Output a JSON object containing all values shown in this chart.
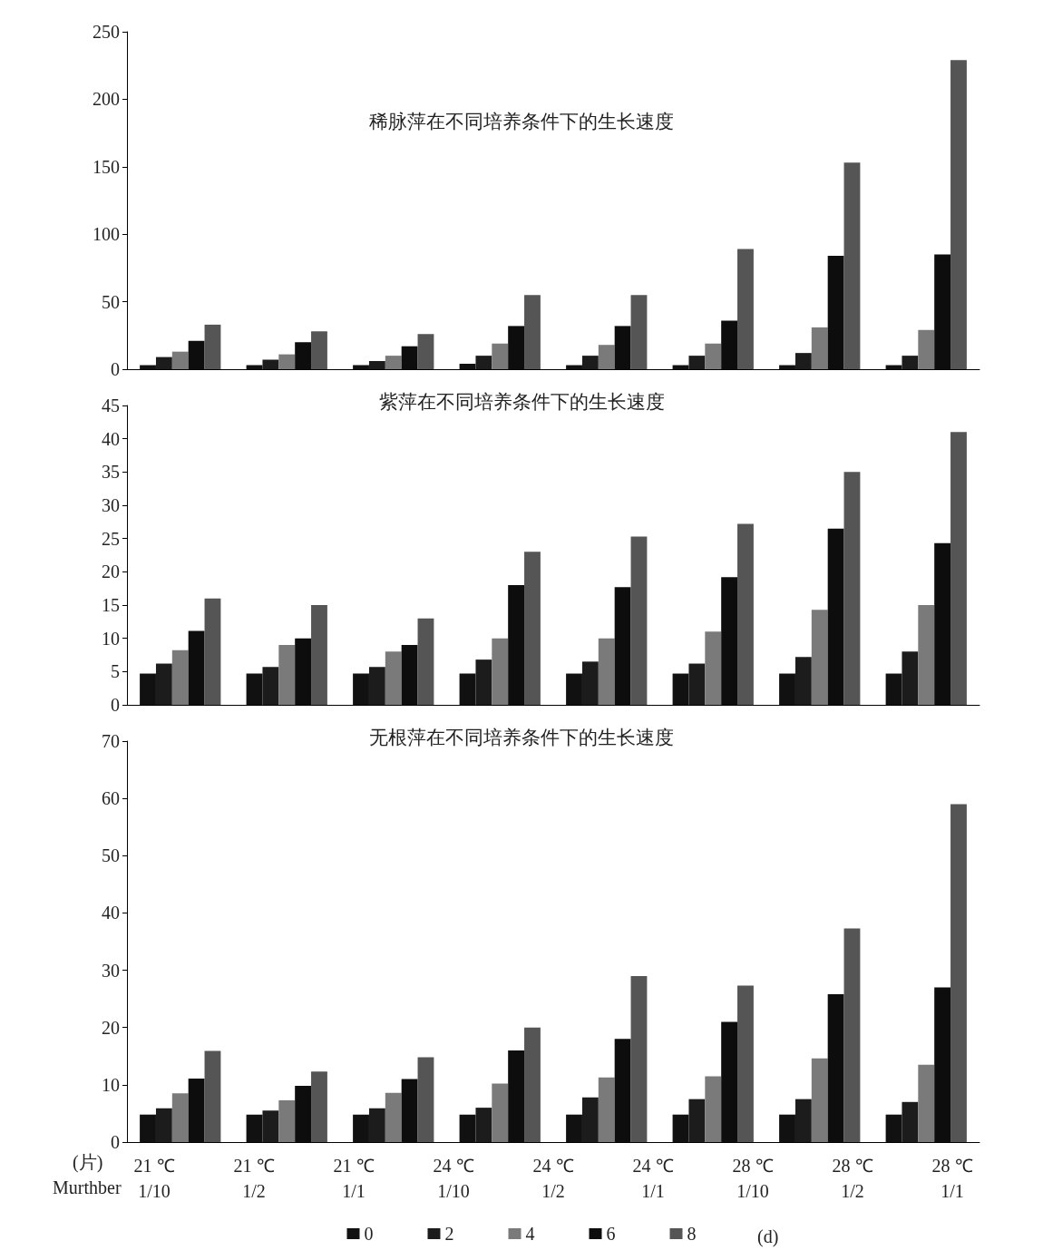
{
  "chart_data": [
    {
      "type": "bar",
      "title": "稀脉萍在不同培养条件下的生长速度",
      "categories": [
        null,
        null,
        null,
        null,
        null,
        null,
        null,
        null
      ],
      "ylim": [
        0,
        250
      ],
      "yticks": [
        0,
        50,
        100,
        150,
        200,
        250
      ],
      "grid": false,
      "legend": false,
      "series": [
        {
          "color": "#111111",
          "values": [
            3,
            3,
            3,
            4,
            3,
            3,
            3,
            3
          ]
        },
        {
          "color": "#1c1c1c",
          "values": [
            9,
            7,
            6,
            10,
            10,
            10,
            12,
            10
          ]
        },
        {
          "color": "#7a7a7a",
          "values": [
            13,
            11,
            10,
            19,
            18,
            19,
            31,
            29
          ]
        },
        {
          "color": "#0d0d0d",
          "values": [
            21,
            20,
            17,
            32,
            32,
            36,
            84,
            85
          ]
        },
        {
          "color": "#555555",
          "values": [
            33,
            28,
            26,
            55,
            55,
            89,
            153,
            229
          ]
        }
      ]
    },
    {
      "type": "bar",
      "title": "紫萍在不同培养条件下的生长速度",
      "categories": [
        null,
        null,
        null,
        null,
        null,
        null,
        null,
        null
      ],
      "ylim": [
        0,
        45
      ],
      "yticks": [
        0,
        5,
        10,
        15,
        20,
        25,
        30,
        35,
        40,
        45
      ],
      "grid": false,
      "legend": false,
      "series": [
        {
          "color": "#111111",
          "values": [
            4.7,
            4.7,
            4.7,
            4.7,
            4.7,
            4.7,
            4.7,
            4.7
          ]
        },
        {
          "color": "#1c1c1c",
          "values": [
            6.2,
            5.7,
            5.7,
            6.8,
            6.5,
            6.2,
            7.2,
            8
          ]
        },
        {
          "color": "#7a7a7a",
          "values": [
            8.2,
            9,
            8,
            10,
            10,
            11,
            14.3,
            15
          ]
        },
        {
          "color": "#0d0d0d",
          "values": [
            11.1,
            10,
            9,
            18,
            17.7,
            19.2,
            26.5,
            24.3
          ]
        },
        {
          "color": "#555555",
          "values": [
            16,
            15,
            13,
            23,
            25.3,
            27.2,
            35,
            41
          ]
        }
      ]
    },
    {
      "type": "bar",
      "title": "无根萍在不同培养条件下的生长速度",
      "categories": [
        null,
        null,
        null,
        null,
        null,
        null,
        null,
        null
      ],
      "ylim": [
        0,
        70
      ],
      "yticks": [
        0,
        10,
        20,
        30,
        40,
        50,
        60,
        70
      ],
      "grid": false,
      "legend": "bottom",
      "legend_title": "(d)",
      "annotations": [
        "(片)",
        "Murthber",
        "21 ℃\n1/10",
        "21 ℃\n1/2",
        "21 ℃\n1/1",
        "24 ℃\n1/10",
        "24 ℃\n1/2",
        "24 ℃\n1/1",
        "28 ℃\n1/10",
        "28 ℃\n1/2",
        "28 ℃\n1/1"
      ],
      "series": [
        {
          "name": "0",
          "color": "#111111",
          "values": [
            4.8,
            4.8,
            4.8,
            4.8,
            4.8,
            4.8,
            4.8,
            4.8
          ]
        },
        {
          "name": "2",
          "color": "#1c1c1c",
          "values": [
            5.9,
            5.5,
            5.9,
            6,
            7.8,
            7.5,
            7.5,
            7
          ]
        },
        {
          "name": "4",
          "color": "#7a7a7a",
          "values": [
            8.5,
            7.3,
            8.6,
            10.2,
            11.3,
            11.5,
            14.6,
            13.5
          ]
        },
        {
          "name": "6",
          "color": "#0d0d0d",
          "values": [
            11.1,
            9.8,
            11,
            16,
            18,
            21,
            25.8,
            27
          ]
        },
        {
          "name": "8",
          "color": "#555555",
          "values": [
            15.9,
            12.3,
            14.8,
            20,
            29,
            27.3,
            37.3,
            59
          ]
        }
      ]
    }
  ]
}
